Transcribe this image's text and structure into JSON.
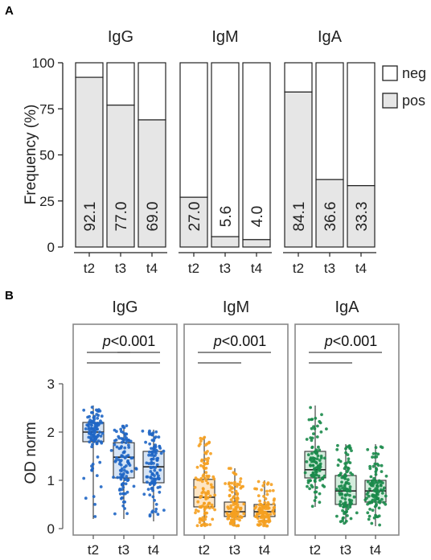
{
  "panel_a": {
    "letter": "A",
    "ylabel": "Frequency (%)",
    "legend": [
      "neg",
      "pos"
    ]
  },
  "panel_b": {
    "letter": "B",
    "ylabel": "OD norm",
    "p_prefix": "p",
    "p_suffix": "<0.001"
  },
  "colors": {
    "pos_fill": "#e6e6e6",
    "neg_fill": "#ffffff",
    "IgG": "#1f66c5",
    "IgM": "#f5a020",
    "IgA": "#1a8a4a"
  },
  "chart_data": [
    {
      "type": "bar",
      "stacked": true,
      "title": "",
      "ylabel": "Frequency (%)",
      "ylim": [
        0,
        100
      ],
      "yticks": [
        0,
        25,
        50,
        75,
        100
      ],
      "categories": [
        "t2",
        "t3",
        "t4"
      ],
      "facets": [
        {
          "name": "IgG",
          "pos": [
            92.1,
            77.0,
            69.0
          ],
          "labels": [
            "92.1",
            "77.0",
            "69.0"
          ]
        },
        {
          "name": "IgM",
          "pos": [
            27.0,
            5.6,
            4.0
          ],
          "labels": [
            "27.0",
            "5.6",
            "4.0"
          ]
        },
        {
          "name": "IgA",
          "pos": [
            84.1,
            36.6,
            33.3
          ],
          "labels": [
            "84.1",
            "36.6",
            "33.3"
          ]
        }
      ],
      "series": [
        {
          "name": "neg"
        },
        {
          "name": "pos"
        }
      ],
      "legend": "right"
    },
    {
      "type": "box",
      "title": "",
      "ylabel": "OD norm",
      "ylim": [
        -0.1,
        3.4
      ],
      "yticks": [
        0,
        1,
        2,
        3
      ],
      "categories": [
        "t2",
        "t3",
        "t4"
      ],
      "facets": [
        {
          "name": "IgG",
          "boxes": [
            {
              "min": 0.2,
              "q1": 1.8,
              "median": 2.0,
              "q3": 2.2,
              "max": 2.55
            },
            {
              "min": 0.2,
              "q1": 1.05,
              "median": 1.48,
              "q3": 1.78,
              "max": 2.15
            },
            {
              "min": 0.15,
              "q1": 0.95,
              "median": 1.28,
              "q3": 1.6,
              "max": 2.05
            }
          ],
          "significance": [
            [
              "t2",
              "t3"
            ],
            [
              "t2",
              "t4"
            ],
            [
              "t3",
              "t4"
            ]
          ]
        },
        {
          "name": "IgM",
          "boxes": [
            {
              "min": 0.05,
              "q1": 0.45,
              "median": 0.65,
              "q3": 1.02,
              "max": 1.9
            },
            {
              "min": 0.05,
              "q1": 0.25,
              "median": 0.35,
              "q3": 0.55,
              "max": 1.25
            },
            {
              "min": 0.05,
              "q1": 0.25,
              "median": 0.35,
              "q3": 0.5,
              "max": 1.0
            }
          ],
          "significance": [
            [
              "t2",
              "t3"
            ],
            [
              "t2",
              "t4"
            ]
          ]
        },
        {
          "name": "IgA",
          "boxes": [
            {
              "min": 0.45,
              "q1": 1.05,
              "median": 1.22,
              "q3": 1.6,
              "max": 2.55
            },
            {
              "min": 0.1,
              "q1": 0.5,
              "median": 0.78,
              "q3": 1.1,
              "max": 1.75
            },
            {
              "min": 0.05,
              "q1": 0.55,
              "median": 0.78,
              "q3": 1.0,
              "max": 1.75
            }
          ],
          "significance": [
            [
              "t2",
              "t3"
            ],
            [
              "t2",
              "t4"
            ]
          ]
        }
      ]
    }
  ]
}
